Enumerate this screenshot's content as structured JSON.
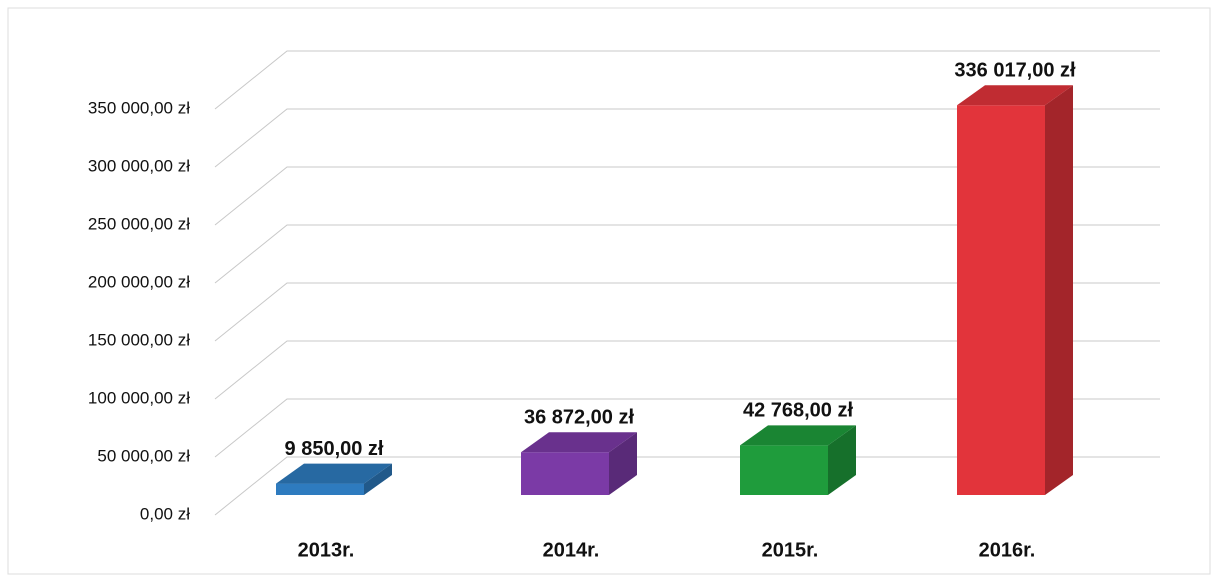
{
  "chart_data": {
    "type": "bar3d",
    "categories": [
      "2013r.",
      "2014r.",
      "2015r.",
      "2016r."
    ],
    "values": [
      9850,
      36872,
      42768,
      336017
    ],
    "value_labels": [
      "9 850,00 zł",
      "36 872,00 zł",
      "42 768,00 zł",
      "336 017,00 zł"
    ],
    "colors": [
      "#2e7bbf",
      "#7b3aa6",
      "#1f9c3c",
      "#e2343b"
    ],
    "ylim": [
      0,
      350000
    ],
    "yticks": [
      {
        "value": 0,
        "label": "0,00 zł"
      },
      {
        "value": 50000,
        "label": "50 000,00 zł"
      },
      {
        "value": 100000,
        "label": "100 000,00 zł"
      },
      {
        "value": 150000,
        "label": "150 000,00 zł"
      },
      {
        "value": 200000,
        "label": "200 000,00 zł"
      },
      {
        "value": 250000,
        "label": "250 000,00 zł"
      },
      {
        "value": 300000,
        "label": "300 000,00 zł"
      },
      {
        "value": 350000,
        "label": "350 000,00 zł"
      }
    ],
    "grid": true
  }
}
